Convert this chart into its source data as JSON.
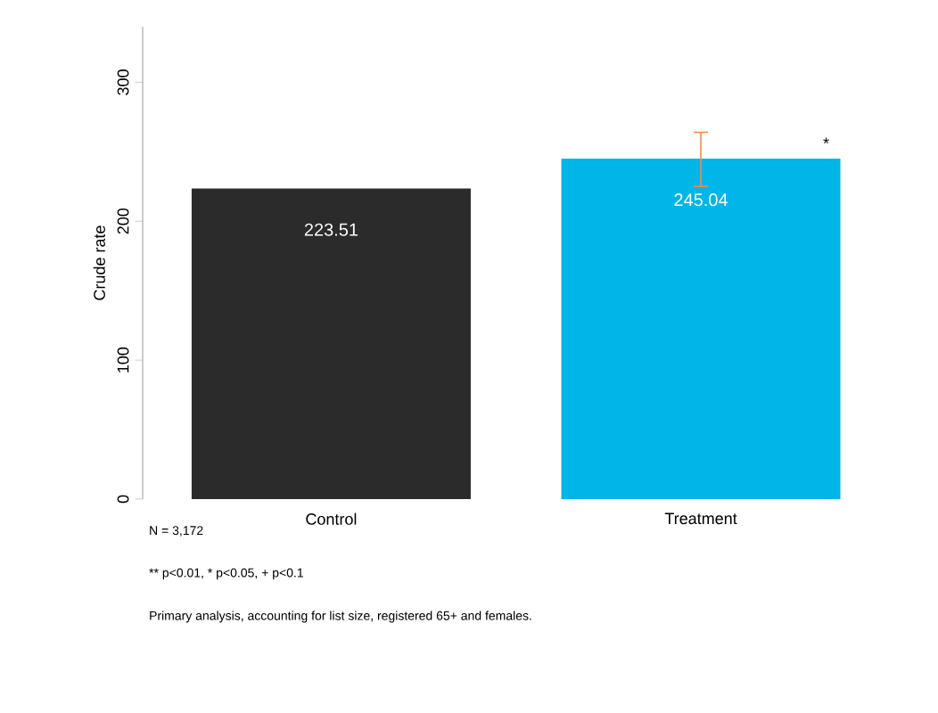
{
  "chart_data": {
    "type": "bar",
    "ylabel": "Crude rate",
    "categories": [
      "Control",
      "Treatment"
    ],
    "values": [
      223.51,
      245.04
    ],
    "colors": [
      "#2b2b2b",
      "#00b5e8"
    ],
    "errors": [
      null,
      [
        225,
        264
      ]
    ],
    "ylim": [
      0,
      340
    ],
    "yticks": [
      0,
      100,
      200,
      300
    ],
    "data_labels": true,
    "annotations": [
      "*",
      "N = 3,172",
      "** p<0.01, * p<0.05, + p<0.1",
      "Primary analysis, accounting for list size, registered 65+ and females."
    ]
  }
}
